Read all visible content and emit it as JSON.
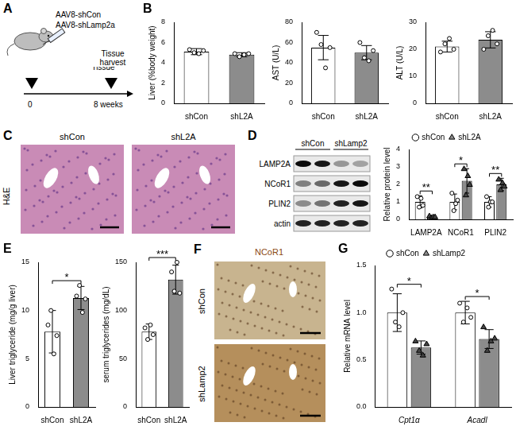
{
  "schematic": {
    "panel": "A",
    "injections": [
      "AAV8-shCon",
      "AAV8-shLamp2a"
    ],
    "event": "Tissue harvest",
    "timeline": [
      "0",
      "8 weeks"
    ]
  },
  "images": [
    {
      "panel": "C",
      "stain": "H&E",
      "groups": [
        "shCon",
        "shL2A"
      ]
    },
    {
      "panel": "F",
      "stain": "NCoR1",
      "groups": [
        "shCon",
        "shLamp2"
      ]
    }
  ],
  "blot": {
    "panel": "D",
    "groups": [
      "shCon",
      "shLamp2"
    ],
    "rows": [
      "LAMP2A",
      "NCoR1",
      "PLIN2",
      "actin"
    ]
  },
  "chart_data": [
    {
      "panel": "B",
      "type": "bar",
      "y_label": "Liver (%body weight)",
      "categories": [
        "shCon",
        "shL2A"
      ],
      "values": [
        5.1,
        4.8
      ],
      "errors": [
        0.3,
        0.2
      ],
      "points": [
        [
          5.3,
          5.0,
          4.9,
          5.2
        ],
        [
          4.9,
          4.6,
          4.8,
          4.9
        ]
      ],
      "colors": [
        "#ffffff",
        "#8c8c8c"
      ],
      "marker": "circle",
      "ylim": [
        0,
        8
      ],
      "yticks": [
        0,
        2,
        4,
        6,
        8
      ],
      "grid": false
    },
    {
      "type": "bar",
      "y_label": "AST (U/L)",
      "categories": [
        "shCon",
        "shL2A"
      ],
      "values": [
        55,
        50
      ],
      "errors": [
        12,
        7
      ],
      "points": [
        [
          70,
          58,
          35,
          55
        ],
        [
          60,
          45,
          42,
          52
        ]
      ],
      "colors": [
        "#ffffff",
        "#8c8c8c"
      ],
      "marker": "circle",
      "ylim": [
        0,
        80
      ],
      "yticks": [
        0,
        20,
        40,
        60,
        80
      ],
      "grid": false
    },
    {
      "type": "bar",
      "y_label": "ALT (U/L)",
      "categories": [
        "shCon",
        "shL2A"
      ],
      "values": [
        21,
        23.5
      ],
      "errors": [
        2,
        3
      ],
      "points": [
        [
          19,
          22,
          24,
          20
        ],
        [
          20,
          25,
          27,
          22
        ]
      ],
      "colors": [
        "#ffffff",
        "#8c8c8c"
      ],
      "marker": "circle",
      "ylim": [
        0,
        30
      ],
      "yticks": [
        0,
        10,
        20,
        30
      ],
      "grid": false
    },
    {
      "type": "bar",
      "y_label": "Relative protein level",
      "categories": [
        "LAMP2A",
        "NCoR1",
        "PLIN2"
      ],
      "series": [
        {
          "name": "shCon",
          "color": "#ffffff",
          "marker": "circle",
          "values": [
            1,
            1,
            1
          ],
          "errors": [
            0.35,
            0.45,
            0.3
          ],
          "points": [
            [
              1.3,
              0.7,
              1.2,
              0.8
            ],
            [
              1.5,
              0.5,
              0.9,
              1.1
            ],
            [
              1.3,
              0.7,
              1.0,
              1.0
            ]
          ]
        },
        {
          "name": "shL2A",
          "color": "#8c8c8c",
          "marker": "triangle",
          "values": [
            0.15,
            2.2,
            2.0
          ],
          "errors": [
            0.05,
            0.7,
            0.35
          ],
          "points": [
            [
              0.2,
              0.1,
              0.15,
              0.15
            ],
            [
              2.9,
              1.4,
              2.5,
              2.0
            ],
            [
              2.3,
              1.7,
              2.1,
              1.9
            ]
          ]
        }
      ],
      "significance": [
        "**",
        "*",
        "**"
      ],
      "legend": "top",
      "ylim": [
        0,
        4
      ],
      "yticks": [
        0,
        1,
        2,
        3,
        4
      ],
      "grid": false
    },
    {
      "panel": "E",
      "type": "bar",
      "y_label": "Liver triglyceride (mg/g liver)",
      "categories": [
        "shCon",
        "shL2A"
      ],
      "values": [
        7.8,
        11.3
      ],
      "errors": [
        2.2,
        1.2
      ],
      "points": [
        [
          8.5,
          10.0,
          5.5,
          7.4
        ],
        [
          11.5,
          12.6,
          9.8,
          11.2
        ]
      ],
      "colors": [
        "#ffffff",
        "#8c8c8c"
      ],
      "marker": "circle",
      "significance": "*",
      "ylim": [
        0,
        15
      ],
      "yticks": [
        0,
        5,
        10,
        15
      ],
      "grid": false
    },
    {
      "type": "bar",
      "y_label": "serum triglycerides (mg/dL)",
      "categories": [
        "shCon",
        "shL2A"
      ],
      "values": [
        78,
        132
      ],
      "errors": [
        8,
        15
      ],
      "points": [
        [
          82,
          70,
          85,
          75
        ],
        [
          140,
          120,
          150,
          118
        ]
      ],
      "colors": [
        "#ffffff",
        "#8c8c8c"
      ],
      "marker": "circle",
      "significance": "***",
      "ylim": [
        0,
        150
      ],
      "yticks": [
        0,
        50,
        100,
        150
      ],
      "grid": false
    },
    {
      "panel": "G",
      "type": "bar",
      "y_label": "Relative mRNA level",
      "categories": [
        "Cpt1α",
        "Acadl"
      ],
      "series": [
        {
          "name": "shCon",
          "color": "#ffffff",
          "marker": "circle",
          "values": [
            1.0,
            1.0
          ],
          "errors": [
            0.2,
            0.12
          ],
          "points": [
            [
              1.25,
              0.9,
              0.85,
              1.0
            ],
            [
              1.1,
              0.9,
              1.05,
              0.95
            ]
          ]
        },
        {
          "name": "shLamp2",
          "color": "#8c8c8c",
          "marker": "triangle",
          "values": [
            0.63,
            0.72
          ],
          "errors": [
            0.07,
            0.1
          ],
          "points": [
            [
              0.7,
              0.6,
              0.55,
              0.67
            ],
            [
              0.85,
              0.6,
              0.7,
              0.73
            ]
          ]
        }
      ],
      "significance": [
        "*",
        "*"
      ],
      "legend": "top",
      "ylim": [
        0,
        1.5
      ],
      "yticks": [
        {
          "value": 0,
          "label": "0.0"
        },
        0.5,
        {
          "value": 1,
          "label": "1.0"
        },
        1.5
      ],
      "grid": false
    }
  ]
}
